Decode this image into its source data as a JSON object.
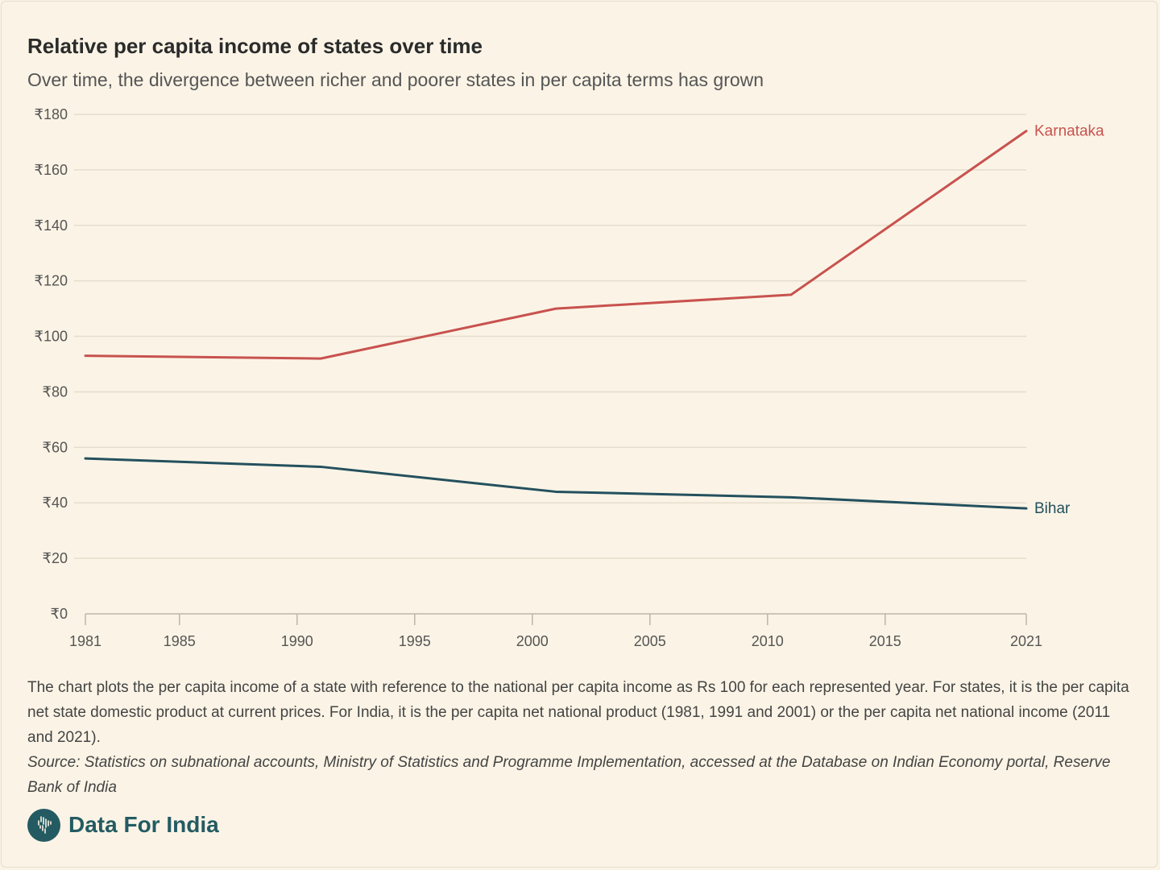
{
  "header": {
    "title": "Relative per capita income of states over time",
    "subtitle": "Over time, the divergence between richer and poorer states in per capita terms has grown"
  },
  "chart_data": {
    "type": "line",
    "x_ticks": [
      "1981",
      "1985",
      "1990",
      "1995",
      "2000",
      "2005",
      "2010",
      "2015",
      "2021"
    ],
    "x_tick_values": [
      1981,
      1985,
      1990,
      1995,
      2000,
      2005,
      2010,
      2015,
      2021
    ],
    "y_ticks": [
      "₹0",
      "₹20",
      "₹40",
      "₹60",
      "₹80",
      "₹100",
      "₹120",
      "₹140",
      "₹160",
      "₹180"
    ],
    "y_tick_values": [
      0,
      20,
      40,
      60,
      80,
      100,
      120,
      140,
      160,
      180
    ],
    "xlim": [
      1981,
      2021
    ],
    "ylim": [
      0,
      180
    ],
    "grid": true,
    "series": [
      {
        "name": "Karnataka",
        "color": "#c8524f",
        "x": [
          1981,
          1991,
          2001,
          2011,
          2021
        ],
        "values": [
          93,
          92,
          110,
          115,
          174
        ]
      },
      {
        "name": "Bihar",
        "color": "#24505e",
        "x": [
          1981,
          1991,
          2001,
          2011,
          2021
        ],
        "values": [
          56,
          53,
          44,
          42,
          38
        ]
      }
    ]
  },
  "footer": {
    "note": "The chart plots the per capita income of a state with reference to the national per capita income as Rs 100 for each represented year. For states, it is the per capita net state domestic product at current prices. For India, it is the per capita net national product (1981, 1991 and 2001) or the per capita net national income (2011 and 2021).",
    "source": "Source: Statistics on subnational accounts, Ministry of Statistics and Programme Implementation, accessed at the Database on Indian Economy portal, Reserve Bank of India",
    "brand": "Data For India",
    "brand_icon": "india-map-icon",
    "brand_color": "#245b63"
  }
}
